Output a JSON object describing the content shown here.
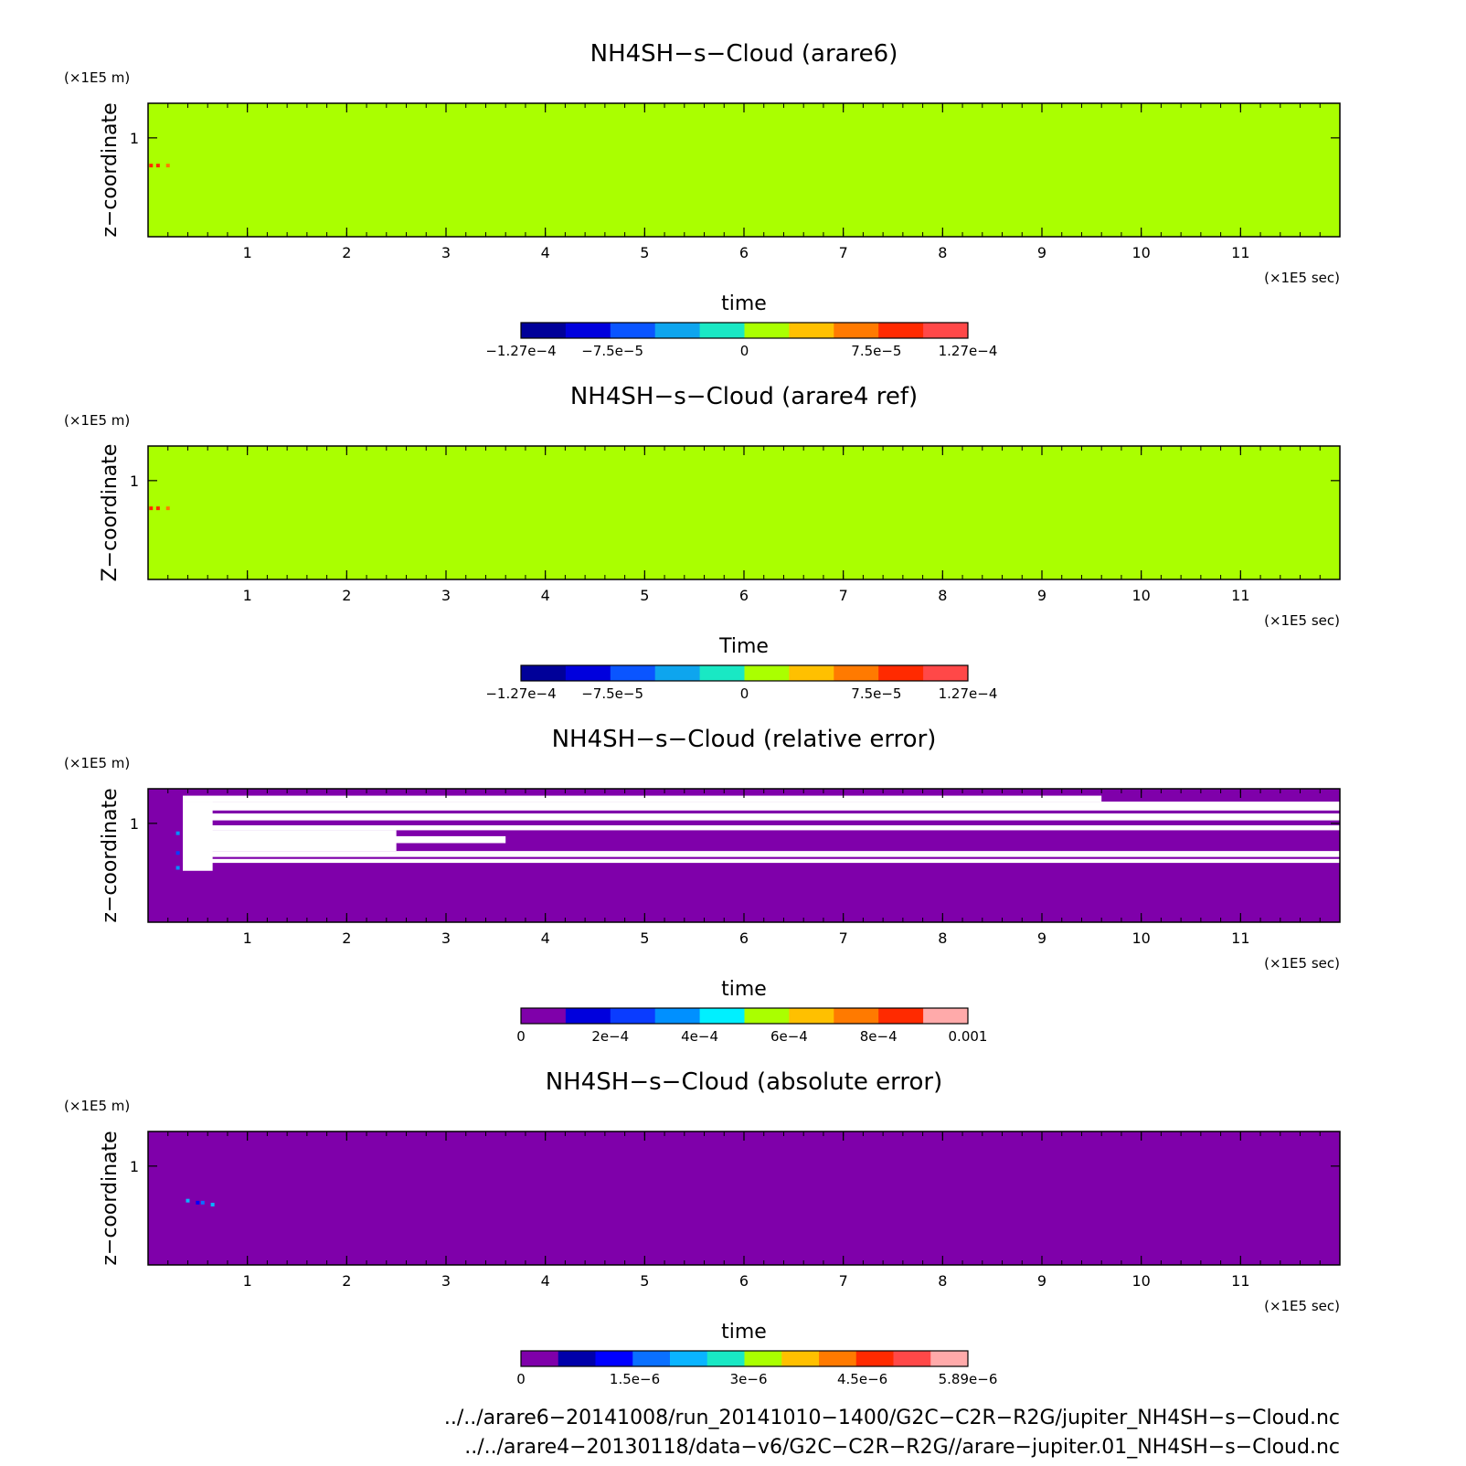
{
  "chart_data": [
    {
      "type": "heatmap",
      "title": "NH4SH−s−Cloud (arare6)",
      "xlabel": "time",
      "ylabel": "z−coordinate",
      "x_unit": "(×1E5 sec)",
      "y_unit": "(×1E5 m)",
      "xlim": [
        0,
        12
      ],
      "ylim": [
        0,
        1.35
      ],
      "x_ticks": [
        1,
        2,
        3,
        4,
        5,
        6,
        7,
        8,
        9,
        10,
        11
      ],
      "y_ticks": [
        1
      ],
      "fill_color": "#aaff00",
      "colorbar": {
        "colors": [
          "#000099",
          "#0000dd",
          "#0a55ff",
          "#0ea5ee",
          "#19e8c4",
          "#aaff00",
          "#ffc000",
          "#ff7a00",
          "#ff2a00",
          "#ff4848"
        ],
        "labels": [
          {
            "value": -0.000127,
            "text": "−1.27e−4"
          },
          {
            "value": -7.5e-05,
            "text": "−7.5e−5"
          },
          {
            "value": 0,
            "text": "0"
          },
          {
            "value": 7.5e-05,
            "text": "7.5e−5"
          },
          {
            "value": 0.000127,
            "text": "1.27e−4"
          }
        ],
        "range": [
          -0.000127,
          0.000127
        ]
      },
      "features": [
        {
          "x": 0.03,
          "y": 0.72,
          "color": "#ff2a00"
        },
        {
          "x": 0.1,
          "y": 0.72,
          "color": "#ff2a00"
        },
        {
          "x": 0.2,
          "y": 0.72,
          "color": "#ff7a00"
        }
      ]
    },
    {
      "type": "heatmap",
      "title": "NH4SH−s−Cloud (arare4 ref)",
      "xlabel": "Time",
      "ylabel": "Z−coordinate",
      "x_unit": "(×1E5 sec)",
      "y_unit": "(×1E5 m)",
      "xlim": [
        0,
        12
      ],
      "ylim": [
        0,
        1.35
      ],
      "x_ticks": [
        1,
        2,
        3,
        4,
        5,
        6,
        7,
        8,
        9,
        10,
        11
      ],
      "y_ticks": [
        1
      ],
      "fill_color": "#aaff00",
      "colorbar": {
        "colors": [
          "#000099",
          "#0000dd",
          "#0a55ff",
          "#0ea5ee",
          "#19e8c4",
          "#aaff00",
          "#ffc000",
          "#ff7a00",
          "#ff2a00",
          "#ff4848"
        ],
        "labels": [
          {
            "value": -0.000127,
            "text": "−1.27e−4"
          },
          {
            "value": -7.5e-05,
            "text": "−7.5e−5"
          },
          {
            "value": 0,
            "text": "0"
          },
          {
            "value": 7.5e-05,
            "text": "7.5e−5"
          },
          {
            "value": 0.000127,
            "text": "1.27e−4"
          }
        ],
        "range": [
          -0.000127,
          0.000127
        ]
      },
      "features": [
        {
          "x": 0.03,
          "y": 0.72,
          "color": "#ff2a00"
        },
        {
          "x": 0.1,
          "y": 0.72,
          "color": "#ff2a00"
        },
        {
          "x": 0.2,
          "y": 0.72,
          "color": "#ff7a00"
        }
      ]
    },
    {
      "type": "heatmap",
      "title": "NH4SH−s−Cloud (relative error)",
      "xlabel": "time",
      "ylabel": "z−coordinate",
      "x_unit": "(×1E5 sec)",
      "y_unit": "(×1E5 m)",
      "xlim": [
        0,
        12
      ],
      "ylim": [
        0,
        1.35
      ],
      "x_ticks": [
        1,
        2,
        3,
        4,
        5,
        6,
        7,
        8,
        9,
        10,
        11
      ],
      "y_ticks": [
        1
      ],
      "fill_color": "#7f00aa",
      "colorbar": {
        "colors": [
          "#7f00aa",
          "#0000dd",
          "#0a3cff",
          "#0090ff",
          "#00f0ff",
          "#aaff00",
          "#ffc000",
          "#ff7a00",
          "#ff2a00",
          "#ffaaaa"
        ],
        "labels": [
          {
            "value": 0,
            "text": "0"
          },
          {
            "value": 0.0002,
            "text": "2e−4"
          },
          {
            "value": 0.0004,
            "text": "4e−4"
          },
          {
            "value": 0.0006,
            "text": "6e−4"
          },
          {
            "value": 0.0008,
            "text": "8e−4"
          },
          {
            "value": 0.001,
            "text": "0.001"
          }
        ],
        "range": [
          0,
          0.001
        ]
      },
      "white_regions": [
        {
          "x": [
            0.35,
            12
          ],
          "y": [
            1.13,
            1.22
          ]
        },
        {
          "x": [
            0.35,
            12
          ],
          "y": [
            1.03,
            1.1
          ]
        },
        {
          "x": [
            0.35,
            12
          ],
          "y": [
            0.93,
            0.98
          ]
        },
        {
          "x": [
            0.35,
            12
          ],
          "y": [
            0.66,
            0.72
          ]
        },
        {
          "x": [
            0.35,
            12
          ],
          "y": [
            0.6,
            0.64
          ]
        },
        {
          "x": [
            0.35,
            2.5
          ],
          "y": [
            0.72,
            0.93
          ]
        },
        {
          "x": [
            0.35,
            3.6
          ],
          "y": [
            0.8,
            0.87
          ]
        },
        {
          "x": [
            0.35,
            9.6
          ],
          "y": [
            1.22,
            1.28
          ]
        },
        {
          "x": [
            0.35,
            0.65
          ],
          "y": [
            0.52,
            1.22
          ]
        }
      ],
      "features": [
        {
          "x": 0.3,
          "y": 0.9,
          "color": "#0090ff"
        },
        {
          "x": 0.3,
          "y": 0.7,
          "color": "#0a3cff"
        },
        {
          "x": 0.3,
          "y": 0.55,
          "color": "#0090ff"
        }
      ]
    },
    {
      "type": "heatmap",
      "title": "NH4SH−s−Cloud (absolute error)",
      "xlabel": "time",
      "ylabel": "z−coordinate",
      "x_unit": "(×1E5 sec)",
      "y_unit": "(×1E5 m)",
      "xlim": [
        0,
        12
      ],
      "ylim": [
        0,
        1.35
      ],
      "x_ticks": [
        1,
        2,
        3,
        4,
        5,
        6,
        7,
        8,
        9,
        10,
        11
      ],
      "y_ticks": [
        1
      ],
      "fill_color": "#7f00aa",
      "colorbar": {
        "colors": [
          "#7f00aa",
          "#0000aa",
          "#0000ff",
          "#0a70ff",
          "#0ab4ff",
          "#19e8c4",
          "#aaff00",
          "#ffc000",
          "#ff7a00",
          "#ff2a00",
          "#ff4848",
          "#ffaaaa"
        ],
        "labels": [
          {
            "value": 0,
            "text": "0"
          },
          {
            "value": 1.5e-06,
            "text": "1.5e−6"
          },
          {
            "value": 3e-06,
            "text": "3e−6"
          },
          {
            "value": 4.5e-06,
            "text": "4.5e−6"
          },
          {
            "value": 5.89e-06,
            "text": "5.89e−6"
          }
        ],
        "range": [
          0,
          5.89e-06
        ]
      },
      "features": [
        {
          "x": 0.4,
          "y": 0.65,
          "color": "#0ab4ff"
        },
        {
          "x": 0.5,
          "y": 0.63,
          "color": "#0000ff"
        },
        {
          "x": 0.55,
          "y": 0.63,
          "color": "#0a70ff"
        },
        {
          "x": 0.65,
          "y": 0.61,
          "color": "#0ab4ff"
        }
      ]
    }
  ],
  "footer": {
    "line1": "../../arare6−20141008/run_20141010−1400/G2C−C2R−R2G/jupiter_NH4SH−s−Cloud.nc",
    "line2": "../../arare4−20130118/data−v6/G2C−C2R−R2G//arare−jupiter.01_NH4SH−s−Cloud.nc"
  }
}
